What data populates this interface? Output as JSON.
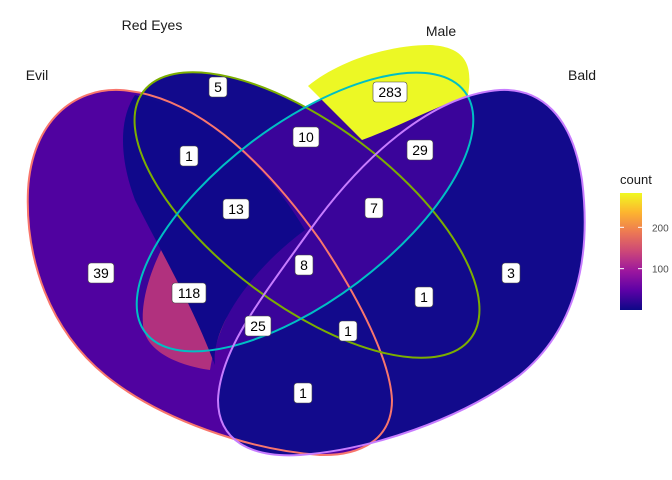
{
  "sets": [
    {
      "name": "Evil",
      "stroke": "#f8766d"
    },
    {
      "name": "Red Eyes",
      "stroke": "#7cae00"
    },
    {
      "name": "Male",
      "stroke": "#00bfc4"
    },
    {
      "name": "Bald",
      "stroke": "#c77cff"
    }
  ],
  "regions": [
    {
      "sets": [
        "Evil"
      ],
      "count": "39",
      "fill": "#5002a0"
    },
    {
      "sets": [
        "Red Eyes"
      ],
      "count": "5",
      "fill": "#120a8c"
    },
    {
      "sets": [
        "Male"
      ],
      "count": "283",
      "fill": "#ecf825"
    },
    {
      "sets": [
        "Bald"
      ],
      "count": "3",
      "fill": "#120a8c"
    },
    {
      "sets": [
        "Evil",
        "Red Eyes"
      ],
      "count": "1",
      "fill": "#10088b"
    },
    {
      "sets": [
        "Red Eyes",
        "Male"
      ],
      "count": "10",
      "fill": "#1c0a8e"
    },
    {
      "sets": [
        "Male",
        "Bald"
      ],
      "count": "29",
      "fill": "#3a049a"
    },
    {
      "sets": [
        "Evil",
        "Male"
      ],
      "count": "118",
      "fill": "#b1317e"
    },
    {
      "sets": [
        "Evil",
        "Bald"
      ],
      "count": "1",
      "fill": "#10088b"
    },
    {
      "sets": [
        "Red Eyes",
        "Bald"
      ],
      "count": "1",
      "fill": "#10088b"
    },
    {
      "sets": [
        "Evil",
        "Red Eyes",
        "Male"
      ],
      "count": "13",
      "fill": "#1e0990"
    },
    {
      "sets": [
        "Red Eyes",
        "Male",
        "Bald"
      ],
      "count": "7",
      "fill": "#18088d"
    },
    {
      "sets": [
        "Evil",
        "Male",
        "Bald"
      ],
      "count": "25",
      "fill": "#2a079a"
    },
    {
      "sets": [
        "Evil",
        "Red Eyes",
        "Bald"
      ],
      "count": "1",
      "fill": "#10088b"
    },
    {
      "sets": [
        "Evil",
        "Red Eyes",
        "Male",
        "Bald"
      ],
      "count": "8",
      "fill": "#18088d"
    }
  ],
  "legend": {
    "title": "count",
    "ticks": [
      {
        "value": 100,
        "label": "100"
      },
      {
        "value": 200,
        "label": "200"
      }
    ],
    "min": 0,
    "max": 283,
    "colors": [
      "#0d0887",
      "#5c01a6",
      "#9c179e",
      "#cc4778",
      "#ed7953",
      "#fdb42f",
      "#f0f921"
    ]
  }
}
